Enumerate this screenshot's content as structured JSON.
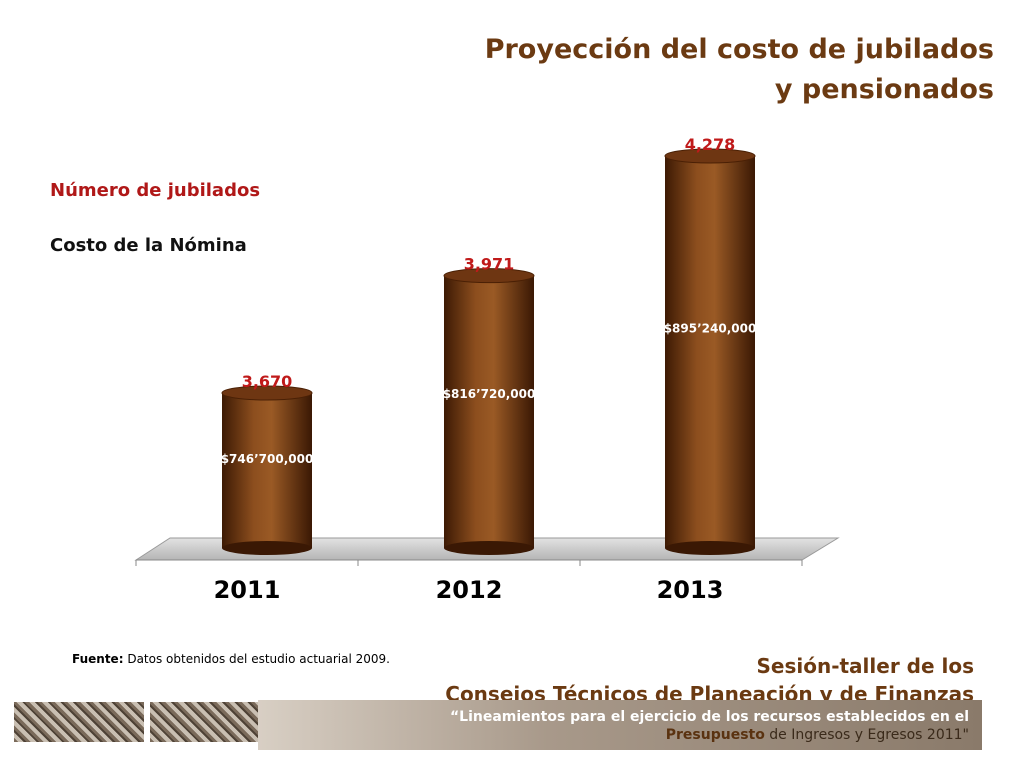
{
  "title_line1": "Proyección del costo de jubilados",
  "title_line2": "y pensionados",
  "legend_jubilados": "Número de jubilados",
  "legend_costo": "Costo de la Nómina",
  "colors": {
    "bar_dark": "#4a2005",
    "bar_light": "#9a5a25",
    "count_label": "#c01a1a",
    "title": "#6b3a12"
  },
  "chart_data": {
    "type": "bar",
    "categories": [
      "2011",
      "2012",
      "2013"
    ],
    "series": [
      {
        "name": "Número de jubilados",
        "values": [
          3670,
          3971,
          4278
        ],
        "labels": [
          "3,670",
          "3,971",
          "4,278"
        ]
      },
      {
        "name": "Costo de la Nómina",
        "values": [
          746700000,
          816720000,
          895240000
        ],
        "labels": [
          "$746’700,000",
          "$816’720,000",
          "$895’240,000"
        ]
      }
    ]
  },
  "source_label": "Fuente:",
  "source_text": "Datos obtenidos del estudio actuarial 2009.",
  "session_line1": "Sesión-taller de los",
  "session_line2": "Consejos Técnicos de Planeación y de Finanzas",
  "quote_line1": "“Lineamientos para el ejercicio de los recursos establecidos en el",
  "quote_strong": "Presupuesto",
  "quote_rest": " de Ingresos y Egresos 2011\""
}
